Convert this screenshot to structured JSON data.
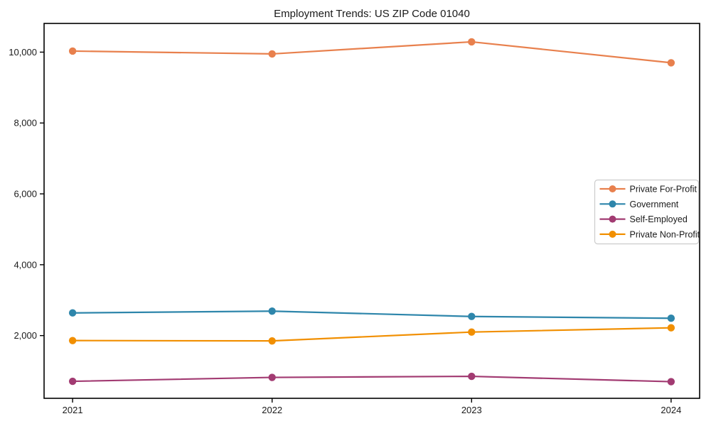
{
  "title": "Employment Trends: US ZIP Code 01040",
  "chart_data": {
    "type": "line",
    "title": "Employment Trends: US ZIP Code 01040",
    "xlabel": "",
    "ylabel": "",
    "x": [
      2021,
      2022,
      2023,
      2024
    ],
    "categories": [
      "2021",
      "2022",
      "2023",
      "2024"
    ],
    "series": [
      {
        "name": "Private For-Profit",
        "color": "#E8804D",
        "values": [
          10030,
          9950,
          10290,
          9700
        ]
      },
      {
        "name": "Government",
        "color": "#2E86AB",
        "values": [
          2640,
          2690,
          2540,
          2490
        ]
      },
      {
        "name": "Self-Employed",
        "color": "#A23B72",
        "values": [
          710,
          820,
          850,
          700
        ]
      },
      {
        "name": "Private Non-Profit",
        "color": "#F18F01",
        "values": [
          1860,
          1850,
          2100,
          2220
        ]
      }
    ],
    "yticks": [
      2000,
      4000,
      6000,
      8000,
      10000
    ],
    "ytick_labels": [
      "2,000",
      "4,000",
      "6,000",
      "8,000",
      "10,000"
    ],
    "xtick_labels": [
      "2021",
      "2022",
      "2023",
      "2024"
    ],
    "ylim": [
      230,
      10810
    ],
    "xlim": [
      2020.857,
      2024.143
    ],
    "grid": false,
    "marker": "circle",
    "legend_position": "center right",
    "legend_labels": [
      "Private For-Profit",
      "Government",
      "Self-Employed",
      "Private Non-Profit"
    ]
  },
  "style": {
    "spine_color": "#000000",
    "tick_color": "#000000",
    "legend_border_color": "#cccccc",
    "legend_background": "#ffffff",
    "background": "#ffffff"
  }
}
